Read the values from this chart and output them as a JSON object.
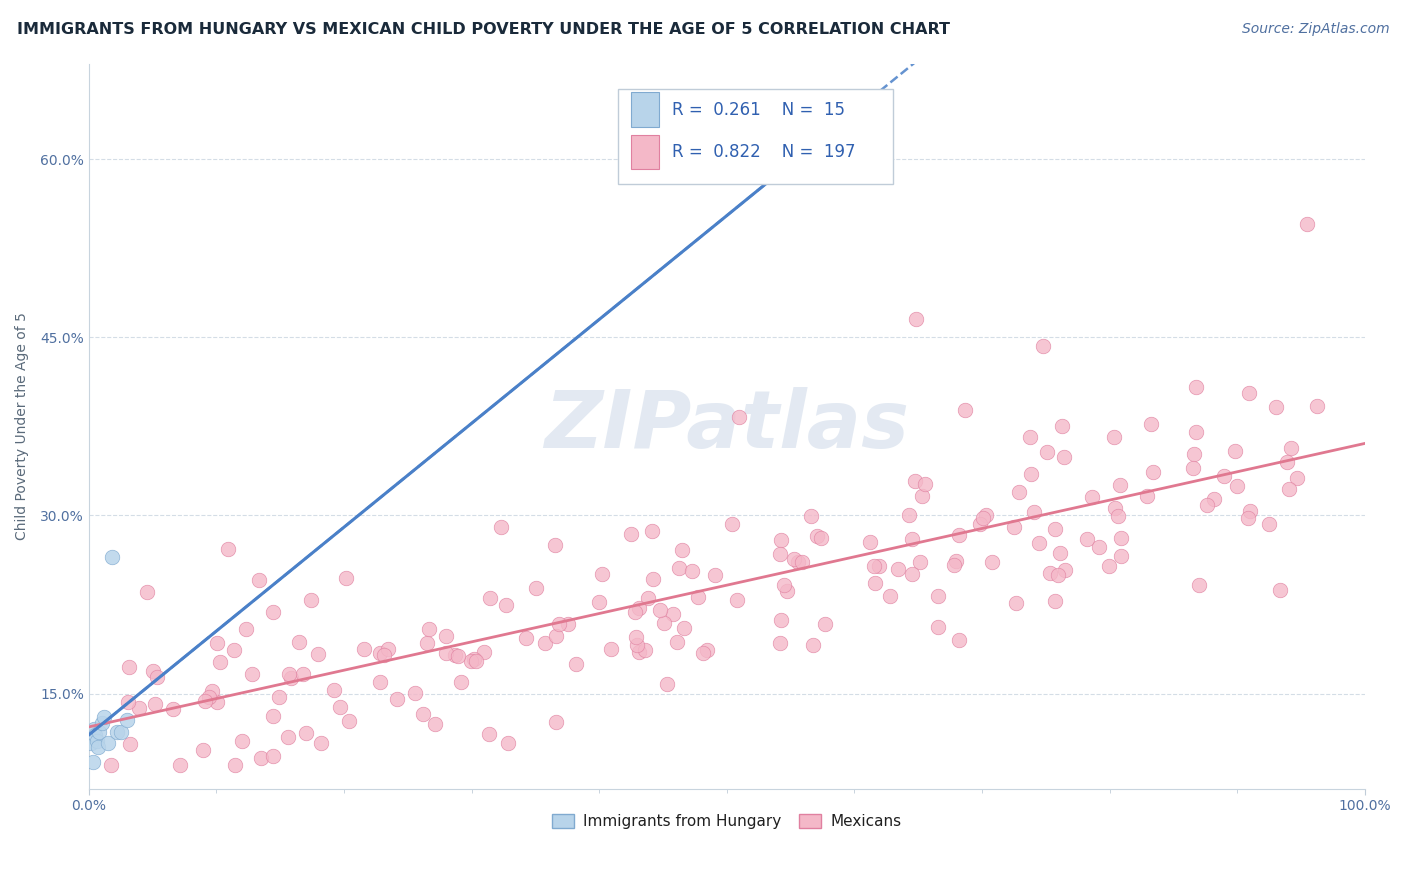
{
  "title": "IMMIGRANTS FROM HUNGARY VS MEXICAN CHILD POVERTY UNDER THE AGE OF 5 CORRELATION CHART",
  "source": "Source: ZipAtlas.com",
  "ylabel": "Child Poverty Under the Age of 5",
  "xmin": 0.0,
  "xmax": 1.0,
  "ymin": 0.07,
  "ymax": 0.68,
  "hungary_R": 0.261,
  "hungary_N": 15,
  "mexico_R": 0.822,
  "mexico_N": 197,
  "hungary_color": "#b8d4ea",
  "hungary_edge_color": "#80aad0",
  "mexico_color": "#f4b8c8",
  "mexico_edge_color": "#e080a0",
  "hungary_line_color": "#4a80c8",
  "mexico_line_color": "#e07890",
  "watermark": "ZIPatlas",
  "watermark_color": "#ccd8e8",
  "background_color": "#ffffff",
  "grid_color": "#d0dae4",
  "ytick_vals": [
    0.15,
    0.3,
    0.45,
    0.6
  ],
  "ytick_labels": [
    "15.0%",
    "30.0%",
    "45.0%",
    "60.0%"
  ],
  "title_fontsize": 11.5,
  "axis_fontsize": 10,
  "legend_fontsize": 12,
  "source_fontsize": 10,
  "legend_text_color": "#3060b0",
  "axis_label_color": "#5070a0",
  "tick_label_color": "#5070a0"
}
